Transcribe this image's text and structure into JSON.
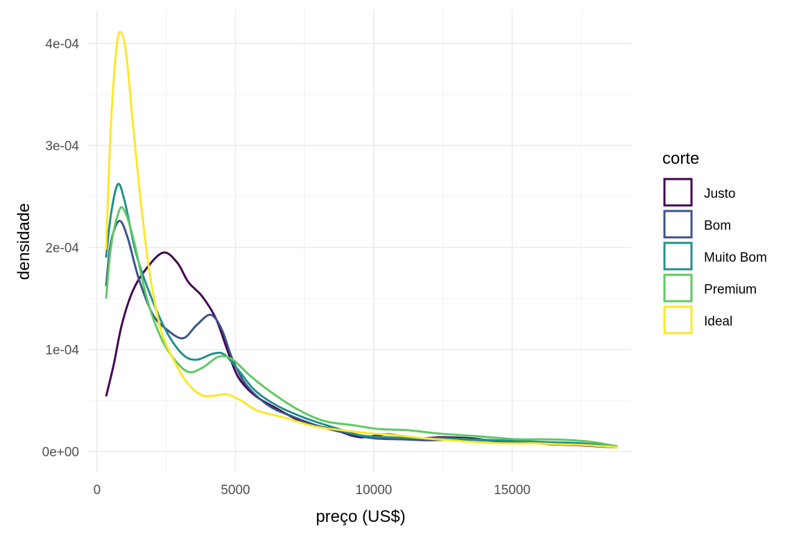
{
  "chart_data": {
    "type": "line",
    "xlabel": "preço (US$)",
    "ylabel": "densidade",
    "xlim": [
      -300,
      19300
    ],
    "ylim": [
      -2e-05,
      0.000433
    ],
    "x_ticks": [
      0,
      5000,
      10000,
      15000
    ],
    "x_tick_labels": [
      "0",
      "5000",
      "10000",
      "15000"
    ],
    "y_ticks": [
      0,
      0.0001,
      0.0002,
      0.0003,
      0.0004
    ],
    "y_tick_labels": [
      "0e+00",
      "1e-04",
      "2e-04",
      "3e-04",
      "4e-04"
    ],
    "x_minor": [
      2500,
      7500,
      12500,
      17500
    ],
    "y_minor": [
      5e-05,
      0.00015,
      0.00025,
      0.00035
    ],
    "grid": true,
    "legend": {
      "title": "corte",
      "position": "right"
    },
    "series": [
      {
        "name": "Justo",
        "color": "#440154",
        "points": [
          [
            326,
            5.4e-05
          ],
          [
            600,
            8.5e-05
          ],
          [
            900,
            0.000125
          ],
          [
            1300,
            0.000158
          ],
          [
            1800,
            0.00018
          ],
          [
            2400,
            0.000195
          ],
          [
            2900,
            0.000185
          ],
          [
            3300,
            0.000166
          ],
          [
            3800,
            0.000152
          ],
          [
            4300,
            0.00013
          ],
          [
            4700,
            0.0001
          ],
          [
            5100,
            7.3e-05
          ],
          [
            5700,
            5.5e-05
          ],
          [
            6500,
            4.2e-05
          ],
          [
            7500,
            2.8e-05
          ],
          [
            8500,
            2.2e-05
          ],
          [
            9500,
            1.4e-05
          ],
          [
            10500,
            1.7e-05
          ],
          [
            11500,
            1.3e-05
          ],
          [
            12500,
            1.4e-05
          ],
          [
            13500,
            1.3e-05
          ],
          [
            14500,
            1e-05
          ],
          [
            15500,
            9e-06
          ],
          [
            16500,
            7e-06
          ],
          [
            17500,
            6e-06
          ],
          [
            18800,
            4e-06
          ]
        ]
      },
      {
        "name": "Bom",
        "color": "#3b528b",
        "points": [
          [
            326,
            0.000162
          ],
          [
            500,
            0.000205
          ],
          [
            800,
            0.000226
          ],
          [
            1100,
            0.00021
          ],
          [
            1500,
            0.00017
          ],
          [
            2000,
            0.000135
          ],
          [
            2500,
            0.00012
          ],
          [
            3100,
            0.000111
          ],
          [
            3600,
            0.000124
          ],
          [
            4100,
            0.000134
          ],
          [
            4500,
            0.00012
          ],
          [
            4900,
            9e-05
          ],
          [
            5400,
            6.5e-05
          ],
          [
            6200,
            4.5e-05
          ],
          [
            7000,
            3.5e-05
          ],
          [
            8000,
            2.5e-05
          ],
          [
            9000,
            1.8e-05
          ],
          [
            10000,
            1.3e-05
          ],
          [
            11000,
            1.2e-05
          ],
          [
            12000,
            1.1e-05
          ],
          [
            13000,
            1.2e-05
          ],
          [
            14000,
            1.1e-05
          ],
          [
            15500,
            9e-06
          ],
          [
            17000,
            8e-06
          ],
          [
            18800,
            5e-06
          ]
        ]
      },
      {
        "name": "Muito Bom",
        "color": "#21908c",
        "points": [
          [
            326,
            0.00019
          ],
          [
            500,
            0.000232
          ],
          [
            750,
            0.000262
          ],
          [
            1000,
            0.000245
          ],
          [
            1400,
            0.000195
          ],
          [
            1900,
            0.000155
          ],
          [
            2500,
            0.000118
          ],
          [
            3100,
            9.5e-05
          ],
          [
            3600,
            9e-05
          ],
          [
            4200,
            9.6e-05
          ],
          [
            4600,
            9.5e-05
          ],
          [
            5100,
            8e-05
          ],
          [
            5700,
            6e-05
          ],
          [
            6500,
            4.5e-05
          ],
          [
            7500,
            3.3e-05
          ],
          [
            8500,
            2.4e-05
          ],
          [
            9500,
            1.6e-05
          ],
          [
            10500,
            1.4e-05
          ],
          [
            11500,
            1.3e-05
          ],
          [
            12500,
            1.3e-05
          ],
          [
            13500,
            1.2e-05
          ],
          [
            14500,
            1.1e-05
          ],
          [
            15500,
            1e-05
          ],
          [
            16500,
            9e-06
          ],
          [
            17500,
            8e-06
          ],
          [
            18800,
            5e-06
          ]
        ]
      },
      {
        "name": "Premium",
        "color": "#5ec962",
        "points": [
          [
            326,
            0.00015
          ],
          [
            500,
            0.0002
          ],
          [
            750,
            0.000232
          ],
          [
            950,
            0.000238
          ],
          [
            1300,
            0.00021
          ],
          [
            1800,
            0.00015
          ],
          [
            2300,
            0.000112
          ],
          [
            2800,
            9e-05
          ],
          [
            3300,
            7.8e-05
          ],
          [
            3800,
            8.2e-05
          ],
          [
            4400,
            9.3e-05
          ],
          [
            4900,
            9e-05
          ],
          [
            5500,
            7.5e-05
          ],
          [
            6200,
            6e-05
          ],
          [
            7200,
            4.2e-05
          ],
          [
            8200,
            3e-05
          ],
          [
            9200,
            2.6e-05
          ],
          [
            10200,
            2.2e-05
          ],
          [
            11200,
            2.1e-05
          ],
          [
            12200,
            1.8e-05
          ],
          [
            13200,
            1.6e-05
          ],
          [
            14200,
            1.4e-05
          ],
          [
            15200,
            1.2e-05
          ],
          [
            16200,
            1.2e-05
          ],
          [
            17200,
            1.1e-05
          ],
          [
            18000,
            9e-06
          ],
          [
            18800,
            5e-06
          ]
        ]
      },
      {
        "name": "Ideal",
        "color": "#fde725",
        "points": [
          [
            326,
            0.000198
          ],
          [
            500,
            0.00032
          ],
          [
            700,
            0.000395
          ],
          [
            850,
            0.000411
          ],
          [
            1050,
            0.00039
          ],
          [
            1300,
            0.00032
          ],
          [
            1600,
            0.00024
          ],
          [
            1900,
            0.000175
          ],
          [
            2300,
            0.00012
          ],
          [
            2800,
            8.8e-05
          ],
          [
            3300,
            6.6e-05
          ],
          [
            3800,
            5.5e-05
          ],
          [
            4300,
            5.5e-05
          ],
          [
            4700,
            5.6e-05
          ],
          [
            5200,
            5e-05
          ],
          [
            5800,
            4e-05
          ],
          [
            6800,
            3.3e-05
          ],
          [
            7800,
            2.5e-05
          ],
          [
            8800,
            2.1e-05
          ],
          [
            9800,
            1.8e-05
          ],
          [
            10800,
            1.6e-05
          ],
          [
            11800,
            1.3e-05
          ],
          [
            12800,
            1.1e-05
          ],
          [
            13800,
            9e-06
          ],
          [
            14800,
            8e-06
          ],
          [
            15800,
            8e-06
          ],
          [
            16800,
            7e-06
          ],
          [
            17800,
            6e-06
          ],
          [
            18800,
            4e-06
          ]
        ]
      }
    ]
  }
}
